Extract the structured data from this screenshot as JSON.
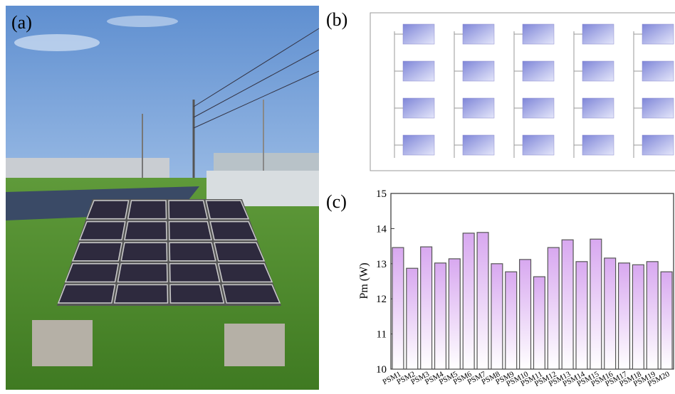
{
  "panels": {
    "a": "(a)",
    "b": "(b)"
  },
  "chart_data": {
    "type": "bar",
    "panel_label": "(c)",
    "ylabel": "Pm (W)",
    "categories": [
      "PSM1",
      "PSM2",
      "PSM3",
      "PSM4",
      "PSM5",
      "PSM6",
      "PSM7",
      "PSM8",
      "PSM9",
      "PSM10",
      "PSM11",
      "PSM12",
      "PSM13",
      "PSM14",
      "PSM15",
      "PSM16",
      "PSM17",
      "PSM18",
      "PSM19",
      "PSM20"
    ],
    "values": [
      13.46,
      12.87,
      13.48,
      13.02,
      13.14,
      13.87,
      13.89,
      13.0,
      12.77,
      13.12,
      12.63,
      13.46,
      13.68,
      13.06,
      13.7,
      13.16,
      13.02,
      12.97,
      13.06,
      12.77
    ],
    "color": "#d8a8f0",
    "ylim": [
      10,
      15
    ],
    "yticks": [
      10,
      11,
      12,
      13,
      14,
      15
    ]
  }
}
